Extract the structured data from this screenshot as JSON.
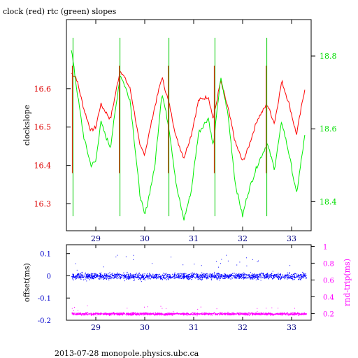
{
  "chart_data": [
    {
      "type": "line",
      "title": "clock (red) rtc (green) slopes",
      "xlabel": "",
      "ylabel": "clockslope",
      "y2label": "",
      "xlim": [
        28.4,
        33.4
      ],
      "ylim": [
        16.23,
        16.78
      ],
      "y2lim": [
        18.32,
        18.9
      ],
      "xticks": [
        29,
        30,
        31,
        32,
        33
      ],
      "yticks": [
        16.3,
        16.4,
        16.5,
        16.6
      ],
      "y2ticks": [
        18.4,
        18.6,
        18.8
      ],
      "grid": false,
      "colors": {
        "left_axis": "#dd0000",
        "right_axis": "#00dd00",
        "x_axis": "#000080"
      },
      "series": [
        {
          "axis": "left",
          "color": "#ff0000",
          "x": [
            28.5,
            28.6,
            28.75,
            28.9,
            29.0,
            29.1,
            29.2,
            29.3,
            29.5,
            29.7,
            29.8,
            29.9,
            30.0,
            30.2,
            30.35,
            30.5,
            30.65,
            30.8,
            30.95,
            31.1,
            31.3,
            31.4,
            31.55,
            31.7,
            31.85,
            32.0,
            32.1,
            32.3,
            32.5,
            32.65,
            32.8,
            32.95,
            33.1,
            33.27
          ],
          "y": [
            16.64,
            16.63,
            16.55,
            16.49,
            16.5,
            16.56,
            16.54,
            16.52,
            16.65,
            16.6,
            16.53,
            16.45,
            16.43,
            16.55,
            16.63,
            16.56,
            16.47,
            16.42,
            16.48,
            16.57,
            16.58,
            16.52,
            16.62,
            16.55,
            16.46,
            16.41,
            16.44,
            16.52,
            16.56,
            16.51,
            16.62,
            16.56,
            16.48,
            16.6
          ]
        },
        {
          "axis": "right",
          "color": "#00ee00",
          "x": [
            28.5,
            28.6,
            28.75,
            28.9,
            29.0,
            29.1,
            29.2,
            29.3,
            29.5,
            29.7,
            29.8,
            29.9,
            30.0,
            30.2,
            30.35,
            30.5,
            30.65,
            30.8,
            30.95,
            31.1,
            31.3,
            31.4,
            31.55,
            31.7,
            31.85,
            32.0,
            32.1,
            32.3,
            32.5,
            32.65,
            32.8,
            32.95,
            33.1,
            33.27
          ],
          "y": [
            18.82,
            18.72,
            18.58,
            18.5,
            18.51,
            18.62,
            18.58,
            18.55,
            18.75,
            18.68,
            18.55,
            18.42,
            18.36,
            18.49,
            18.7,
            18.6,
            18.44,
            18.35,
            18.43,
            18.59,
            18.63,
            18.55,
            18.74,
            18.64,
            18.45,
            18.36,
            18.42,
            18.5,
            18.56,
            18.49,
            18.62,
            18.53,
            18.42,
            18.58
          ]
        }
      ]
    },
    {
      "type": "scatter",
      "title": "",
      "xlabel": "",
      "ylabel": "offset(ms)",
      "y2label": "rnd-trip(ms)",
      "xlim": [
        28.4,
        33.4
      ],
      "ylim": [
        -0.2,
        0.14
      ],
      "y2lim": [
        0.12,
        1.02
      ],
      "xticks": [
        29,
        30,
        31,
        32,
        33
      ],
      "yticks": [
        -0.2,
        -0.1,
        0,
        0.1
      ],
      "ytick_labels": [
        "-0.2",
        "-0.1",
        "0",
        "0.1"
      ],
      "y2ticks": [
        0.2,
        0.4,
        0.6,
        0.8,
        1
      ],
      "grid": false,
      "colors": {
        "left_axis": "#0000cc",
        "right_axis": "#ff00ff",
        "x_axis": "#000080"
      },
      "series": [
        {
          "axis": "left",
          "color": "#0000ff",
          "x_range": [
            28.5,
            33.3
          ],
          "center": 0.0,
          "spread": 0.02
        },
        {
          "axis": "right",
          "color": "#ff00ff",
          "x_range": [
            28.5,
            33.3
          ],
          "center": 0.2,
          "spread": 0.02
        }
      ]
    }
  ],
  "footer": "2013-07-28  monopole.physics.ubc.ca"
}
